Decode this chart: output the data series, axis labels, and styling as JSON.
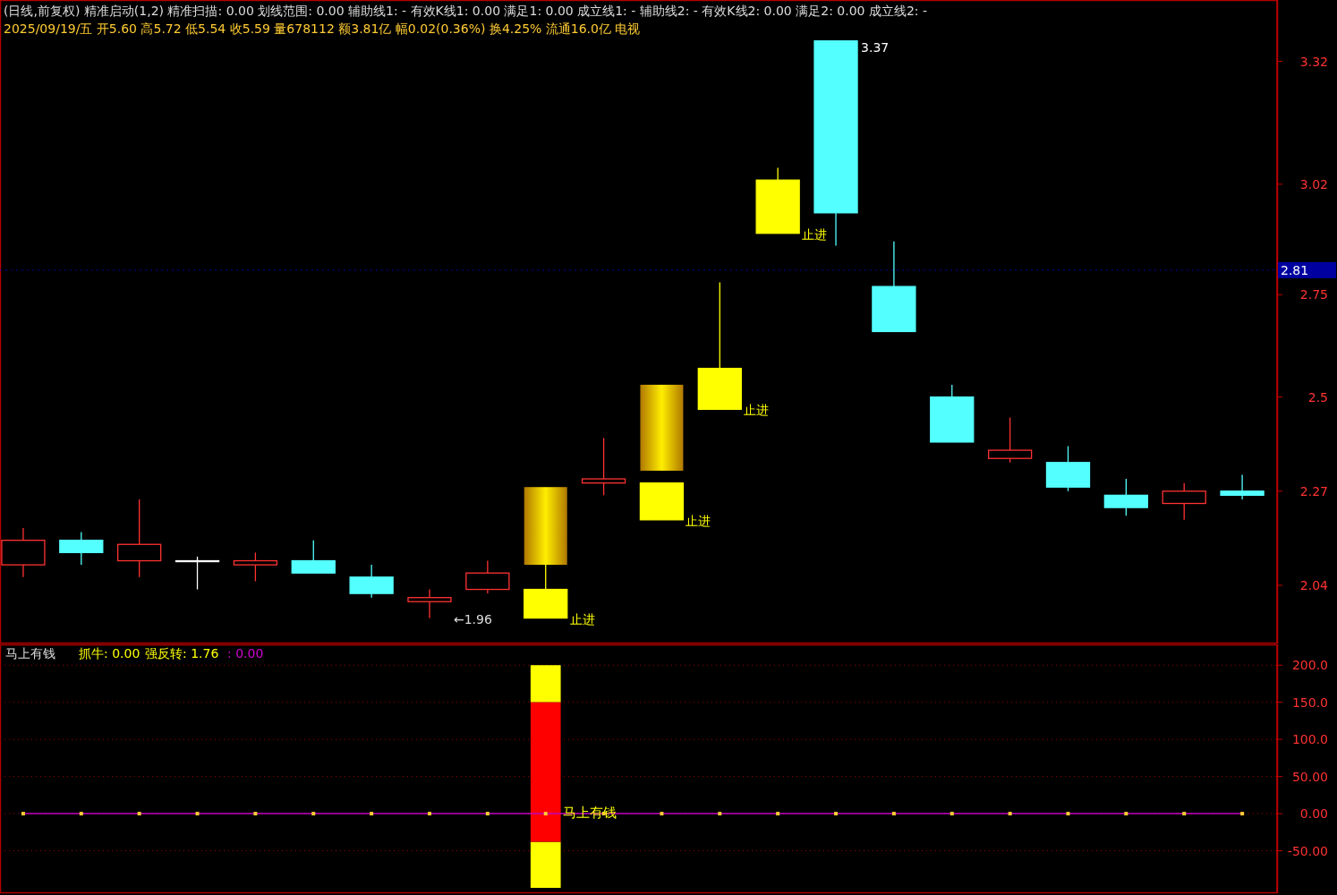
{
  "chart_data": [
    {
      "type": "candlestick",
      "categories": [
        null,
        null,
        null,
        null,
        null,
        null,
        null,
        null,
        null,
        null,
        null,
        null,
        null,
        null,
        null,
        null,
        null,
        null,
        null,
        null,
        null,
        null
      ],
      "ohlc": [
        [
          2.09,
          2.18,
          2.06,
          2.15
        ],
        [
          2.15,
          2.17,
          2.09,
          2.12
        ],
        [
          2.1,
          2.25,
          2.06,
          2.14
        ],
        [
          2.1,
          2.11,
          2.03,
          2.1
        ],
        [
          2.09,
          2.12,
          2.05,
          2.1
        ],
        [
          2.1,
          2.15,
          2.07,
          2.07
        ],
        [
          2.06,
          2.09,
          2.01,
          2.02
        ],
        [
          2.0,
          2.03,
          1.96,
          2.01
        ],
        [
          2.03,
          2.1,
          2.02,
          2.07
        ],
        [
          1.96,
          2.09,
          1.96,
          2.03
        ],
        [
          2.29,
          2.4,
          2.26,
          2.3
        ],
        [
          2.2,
          2.29,
          2.2,
          2.29
        ],
        [
          2.47,
          2.78,
          2.47,
          2.57
        ],
        [
          2.9,
          3.06,
          2.9,
          3.03
        ],
        [
          3.37,
          3.37,
          2.87,
          2.95
        ],
        [
          2.77,
          2.88,
          2.66,
          2.66
        ],
        [
          2.5,
          2.53,
          2.39,
          2.39
        ],
        [
          2.35,
          2.45,
          2.34,
          2.37
        ],
        [
          2.34,
          2.38,
          2.27,
          2.28
        ],
        [
          2.26,
          2.3,
          2.21,
          2.23
        ],
        [
          2.24,
          2.29,
          2.2,
          2.27
        ],
        [
          2.27,
          2.31,
          2.25,
          2.26
        ]
      ],
      "colors": [
        "#ff3232",
        "#54ffff",
        "#ff3232",
        "#ffffff",
        "#ff3232",
        "#54ffff",
        "#54ffff",
        "#ff3232",
        "#ff3232",
        "#ffff00",
        "#ff3232",
        "#ffff00",
        "#ffff00",
        "#ffff00",
        "#54ffff",
        "#54ffff",
        "#54ffff",
        "#ff3232",
        "#54ffff",
        "#54ffff",
        "#ff3232",
        "#54ffff"
      ],
      "value_labels": [
        null,
        null,
        null,
        null,
        null,
        null,
        null,
        "←1.96",
        null,
        "止进",
        null,
        "止进",
        "止进",
        "止进",
        "3.37",
        null,
        null,
        null,
        null,
        null,
        null,
        null
      ],
      "series": [
        {
          "type": "bar",
          "color": "#e6a800",
          "values": [
            null,
            null,
            null,
            null,
            null,
            null,
            null,
            null,
            null,
            0.19,
            null,
            0.21,
            null,
            null,
            null,
            null,
            null,
            null,
            null,
            null,
            null,
            null
          ],
          "base": [
            null,
            null,
            null,
            null,
            null,
            null,
            null,
            null,
            null,
            2.09,
            null,
            2.32,
            null,
            null,
            null,
            null,
            null,
            null,
            null,
            null,
            null,
            null
          ]
        }
      ],
      "annotations": [
        "(日线,前复权)  精准启动(1,2)  精准扫描: 0.00  划线范围: 0.00  辅助线1: -  有效K线1: 0.00  满足1: 0.00  成立线1: -  辅助线2: -  有效K线2: 0.00  满足2: 0.00  成立线2: -",
        "2025/09/19/五 开5.60 高5.72 低5.54 收5.59 量678112 额3.81亿 幅0.02(0.36%) 换4.25% 流通16.0亿 电视"
      ],
      "ylim": [
        1.9,
        3.47
      ],
      "yticks": [
        2.04,
        2.27,
        2.5,
        2.75,
        3.02,
        3.32
      ],
      "ref_lines": [
        {
          "axis": "y",
          "value": 2.81,
          "label": "2.81",
          "color": "#0000a0"
        }
      ],
      "tick_labels": "y",
      "grid": false
    },
    {
      "type": "bar",
      "categories": [
        null,
        null,
        null,
        null,
        null,
        null,
        null,
        null,
        null,
        null,
        null,
        null,
        null,
        null,
        null,
        null,
        null,
        null,
        null,
        null,
        null,
        null
      ],
      "series": [
        {
          "type": "line",
          "color": "#c000c0",
          "values": [
            0,
            0,
            0,
            0,
            0,
            0,
            0,
            0,
            0,
            0,
            0,
            0,
            0,
            0,
            0,
            0,
            0,
            0,
            0,
            0,
            0,
            0
          ],
          "value_labels": [
            null,
            null,
            null,
            null,
            null,
            null,
            null,
            null,
            null,
            "马上有钱",
            null,
            null,
            null,
            null,
            null,
            null,
            null,
            null,
            null,
            null,
            null,
            null
          ]
        },
        {
          "type": "bar",
          "color": "#ffff00",
          "values": [
            null,
            null,
            null,
            null,
            null,
            null,
            null,
            null,
            null,
            62,
            null,
            null,
            null,
            null,
            null,
            null,
            null,
            null,
            null,
            null,
            null,
            null
          ],
          "base": [
            null,
            null,
            null,
            null,
            null,
            null,
            null,
            null,
            null,
            -100,
            null,
            null,
            null,
            null,
            null,
            null,
            null,
            null,
            null,
            null,
            null,
            null
          ]
        },
        {
          "type": "bar",
          "color": "#ffff00",
          "values": [
            null,
            null,
            null,
            null,
            null,
            null,
            null,
            null,
            null,
            50,
            null,
            null,
            null,
            null,
            null,
            null,
            null,
            null,
            null,
            null,
            null,
            null
          ],
          "base": [
            null,
            null,
            null,
            null,
            null,
            null,
            null,
            null,
            null,
            150,
            null,
            null,
            null,
            null,
            null,
            null,
            null,
            null,
            null,
            null,
            null,
            null
          ]
        },
        {
          "type": "bar",
          "color": "#ff0000",
          "values": [
            null,
            null,
            null,
            null,
            null,
            null,
            null,
            null,
            null,
            188,
            null,
            null,
            null,
            null,
            null,
            null,
            null,
            null,
            null,
            null,
            null,
            null
          ],
          "base": [
            null,
            null,
            null,
            null,
            null,
            null,
            null,
            null,
            null,
            -38,
            null,
            null,
            null,
            null,
            null,
            null,
            null,
            null,
            null,
            null,
            null,
            null
          ]
        }
      ],
      "marker": "square",
      "annotations": [
        "马上有钱",
        "抓牛: 0.00",
        "强反转: 1.76",
        ": 0.00"
      ],
      "ylim": [
        -106,
        228
      ],
      "yticks": [
        {
          "value": 200,
          "label": "200.0"
        },
        {
          "value": 150,
          "label": "150.0"
        },
        {
          "value": 100,
          "label": "100.0"
        },
        {
          "value": 50,
          "label": "50.00"
        },
        {
          "value": 0,
          "label": "0.00"
        },
        {
          "value": -50,
          "label": "-50.00"
        }
      ],
      "grid": "y",
      "tick_labels": "y"
    }
  ]
}
